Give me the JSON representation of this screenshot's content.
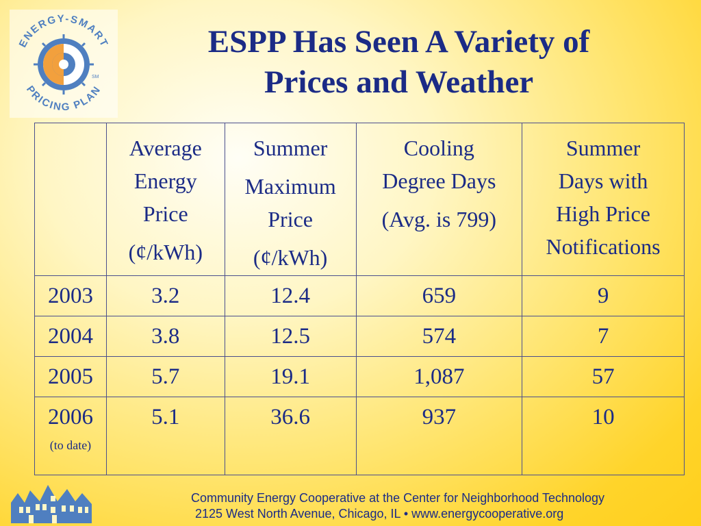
{
  "logo": {
    "top_text": "ENERGY-SMART",
    "bottom_text": "PRICING PLAN",
    "mark": "SM"
  },
  "title": {
    "line1": "ESPP Has Seen A Variety of",
    "line2": "Prices and Weather"
  },
  "table": {
    "headers": [
      {
        "lines": [
          "Average",
          "Energy",
          "Price",
          "(¢/kWh)"
        ]
      },
      {
        "lines": [
          "Summer",
          "Maximum",
          "Price",
          "(¢/kWh)"
        ]
      },
      {
        "lines": [
          "Cooling",
          "Degree Days",
          "(Avg. is 799)"
        ]
      },
      {
        "lines": [
          "Summer",
          "Days with",
          "High Price",
          "Notifications"
        ]
      }
    ],
    "rows": [
      {
        "year": "2003",
        "note": "",
        "values": [
          "3.2",
          "12.4",
          "659",
          "9"
        ]
      },
      {
        "year": "2004",
        "note": "",
        "values": [
          "3.8",
          "12.5",
          "574",
          "7"
        ]
      },
      {
        "year": "2005",
        "note": "",
        "values": [
          "5.7",
          "19.1",
          "1,087",
          "57"
        ]
      },
      {
        "year": "2006",
        "note": "(to date)",
        "values": [
          "5.1",
          "36.6",
          "937",
          "10"
        ]
      }
    ]
  },
  "footer": {
    "line1": "Community Energy Cooperative at the Center for Neighborhood Technology",
    "line2": "2125 West North Avenue, Chicago, IL • www.energycooperative.org"
  },
  "colors": {
    "title": "#1b2b86",
    "logo_orange": "#f2a03d",
    "logo_blue": "#4f7fc0",
    "background_yellow": "#ffd42a"
  }
}
